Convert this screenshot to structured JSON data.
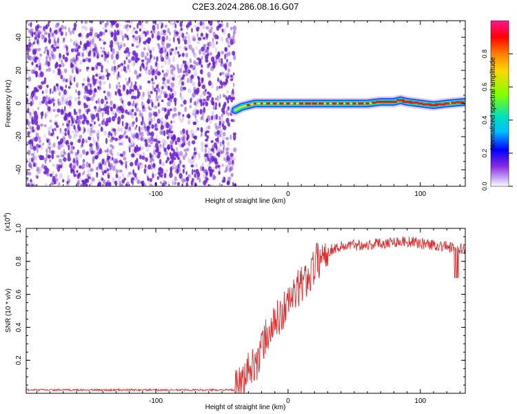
{
  "title": "C2E3.2024.286.08.16.G07",
  "colors": {
    "scatter": "#6a1fd8",
    "signal_low": "#1a3cff",
    "signal_mid": "#22e06a",
    "signal_high": "#e81818",
    "snr_line": "#e52a2a"
  },
  "chart_data": [
    {
      "type": "heatmap",
      "title": "C2E3.2024.286.08.16.G07",
      "xlabel": "Height of straight line (km)",
      "ylabel": "Frequency (Hz)",
      "xlim": [
        -198,
        134
      ],
      "ylim": [
        -50,
        50
      ],
      "x_ticks": [
        -100,
        0,
        100
      ],
      "y_ticks": [
        -40,
        -20,
        0,
        20,
        40
      ],
      "noise_region_x": [
        -198,
        -40
      ],
      "signal_track": {
        "x": [
          -40,
          -35,
          -25,
          -10,
          0,
          20,
          40,
          60,
          70,
          80,
          85,
          90,
          100,
          110,
          120,
          134
        ],
        "freq": [
          -4,
          -2,
          0,
          0,
          0,
          0,
          0,
          0,
          1,
          1,
          2,
          1,
          0,
          -1,
          0,
          1
        ]
      },
      "colorbar": {
        "label": "Normalized spectral amplitude",
        "range": [
          0.0,
          1.0
        ],
        "ticks": [
          "0.0",
          "0.2",
          "0.4",
          "0.6",
          "0.8"
        ]
      }
    },
    {
      "type": "line",
      "xlabel": "Height of straight line (km)",
      "ylabel": "SNR (10 * v/v)",
      "scale_label": "(x10",
      "scale_exp": "4",
      "scale_close": ")",
      "xlim": [
        -198,
        134
      ],
      "ylim": [
        0.0,
        1.0
      ],
      "x_ticks": [
        -100,
        0,
        100
      ],
      "y_ticks": [
        "0.2",
        "0.4",
        "0.6",
        "0.8",
        "1.0"
      ],
      "series": [
        {
          "x": [
            -198,
            -150,
            -100,
            -60,
            -40,
            -35,
            -32,
            -30,
            -28,
            -25,
            -22,
            -20,
            -18,
            -15,
            -12,
            -10,
            -8,
            -5,
            -2,
            0,
            5,
            10,
            15,
            20,
            25,
            30,
            35,
            40,
            50,
            60,
            70,
            80,
            90,
            100,
            110,
            120,
            128,
            134
          ],
          "y": [
            0.02,
            0.02,
            0.02,
            0.02,
            0.02,
            0.05,
            0.1,
            0.16,
            0.12,
            0.22,
            0.18,
            0.28,
            0.32,
            0.36,
            0.4,
            0.42,
            0.45,
            0.48,
            0.52,
            0.55,
            0.6,
            0.66,
            0.7,
            0.78,
            0.83,
            0.86,
            0.88,
            0.89,
            0.9,
            0.9,
            0.91,
            0.92,
            0.92,
            0.91,
            0.9,
            0.89,
            0.87,
            0.88
          ]
        }
      ]
    }
  ]
}
